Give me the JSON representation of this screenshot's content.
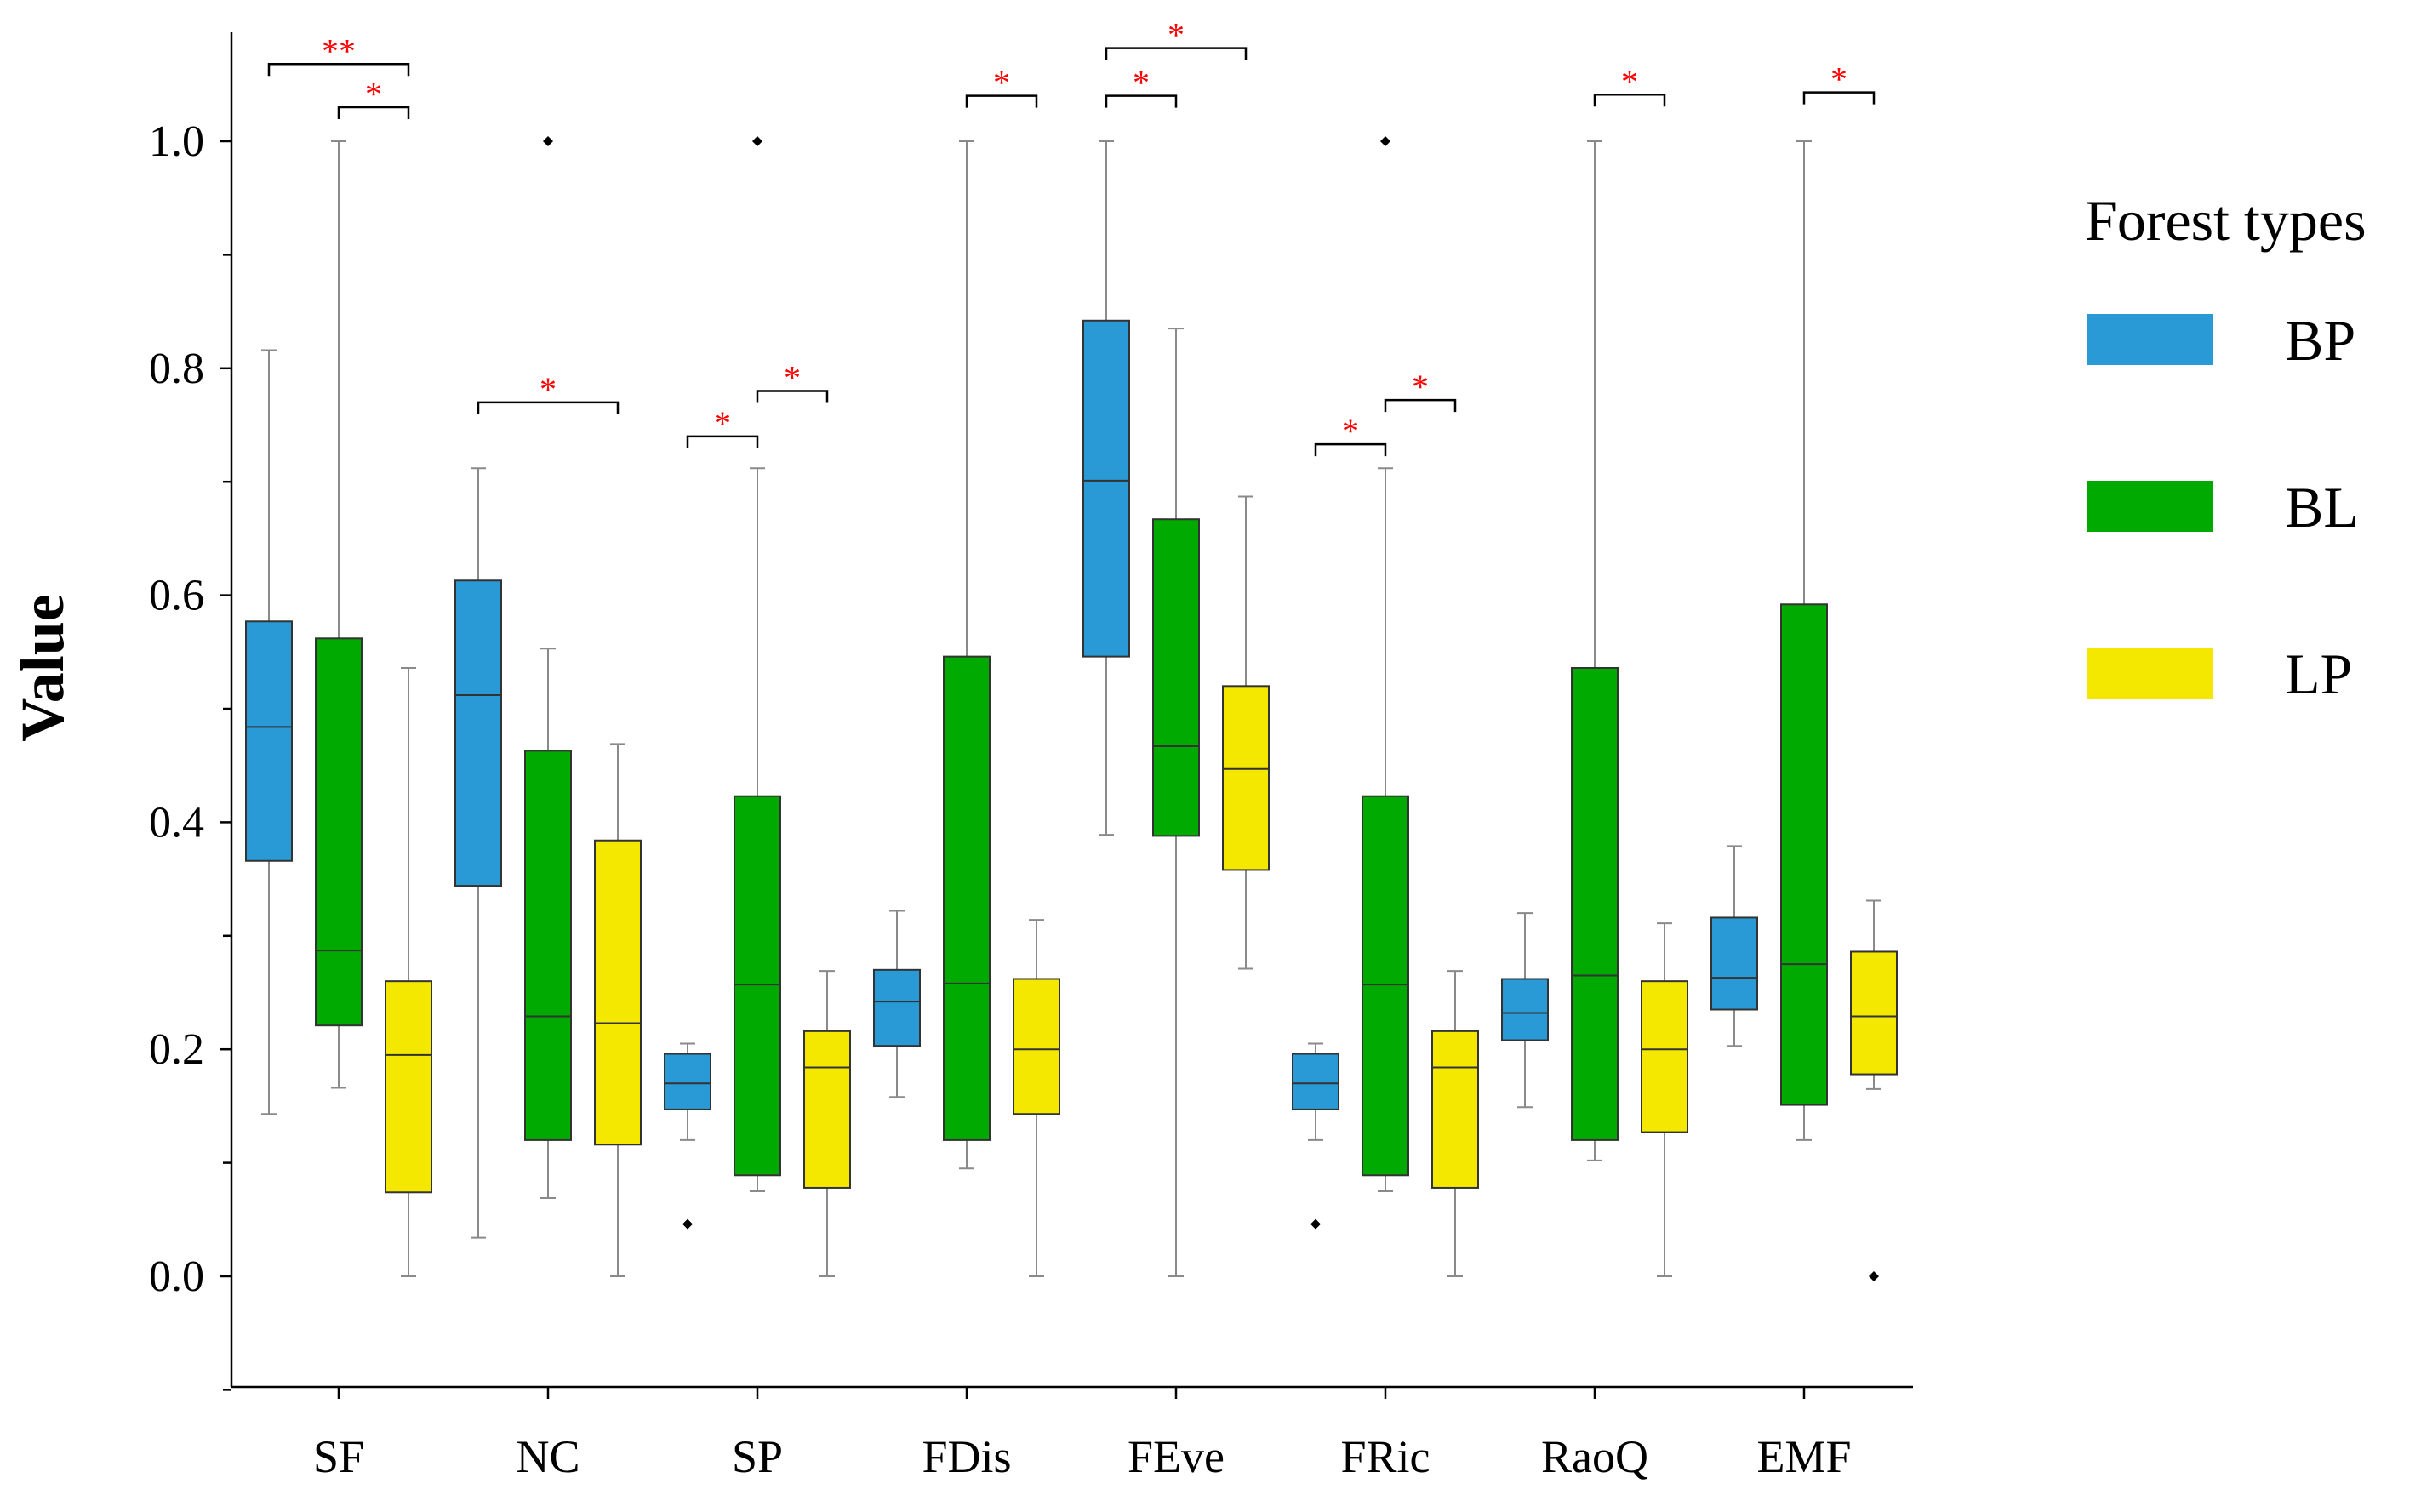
{
  "chart_data": {
    "type": "boxplot",
    "ylabel": "Value",
    "ylim": [
      -0.1,
      1.09
    ],
    "yticks": [
      "0.0",
      "0.2",
      "0.4",
      "0.6",
      "0.8",
      "1.0"
    ],
    "categories": [
      "SF",
      "NC",
      "SP",
      "FDis",
      "FEve",
      "FRic",
      "RaoQ",
      "EMF"
    ],
    "legend": {
      "title": "Forest types",
      "position": "right",
      "items": [
        {
          "name": "BP",
          "color": "#2a9ad6"
        },
        {
          "name": "BL",
          "color": "#00aa00"
        },
        {
          "name": "LP",
          "color": "#f5e800"
        }
      ]
    },
    "series": [
      {
        "name": "BP",
        "color": "#2a9ad6",
        "boxes": [
          {
            "min": 0.143,
            "q1": 0.366,
            "median": 0.484,
            "q3": 0.577,
            "max": 0.816,
            "outliers": []
          },
          {
            "min": 0.034,
            "q1": 0.344,
            "median": 0.512,
            "q3": 0.613,
            "max": 0.712,
            "outliers": []
          },
          {
            "min": 0.12,
            "q1": 0.147,
            "median": 0.17,
            "q3": 0.196,
            "max": 0.205,
            "outliers": [
              0.046
            ]
          },
          {
            "min": 0.158,
            "q1": 0.203,
            "median": 0.242,
            "q3": 0.27,
            "max": 0.322,
            "outliers": []
          },
          {
            "min": 0.389,
            "q1": 0.546,
            "median": 0.701,
            "q3": 0.842,
            "max": 1.0,
            "outliers": []
          },
          {
            "min": 0.12,
            "q1": 0.147,
            "median": 0.17,
            "q3": 0.196,
            "max": 0.205,
            "outliers": [
              0.046
            ]
          },
          {
            "min": 0.149,
            "q1": 0.208,
            "median": 0.232,
            "q3": 0.262,
            "max": 0.32,
            "outliers": []
          },
          {
            "min": 0.203,
            "q1": 0.235,
            "median": 0.263,
            "q3": 0.316,
            "max": 0.379,
            "outliers": []
          }
        ]
      },
      {
        "name": "BL",
        "color": "#00aa00",
        "boxes": [
          {
            "min": 0.166,
            "q1": 0.221,
            "median": 0.287,
            "q3": 0.562,
            "max": 1.0,
            "outliers": []
          },
          {
            "min": 0.069,
            "q1": 0.12,
            "median": 0.229,
            "q3": 0.463,
            "max": 0.553,
            "outliers": [
              1.0
            ]
          },
          {
            "min": 0.075,
            "q1": 0.089,
            "median": 0.257,
            "q3": 0.423,
            "max": 0.712,
            "outliers": [
              1.0
            ]
          },
          {
            "min": 0.095,
            "q1": 0.12,
            "median": 0.258,
            "q3": 0.546,
            "max": 1.0,
            "outliers": []
          },
          {
            "min": 0.0,
            "q1": 0.388,
            "median": 0.467,
            "q3": 0.667,
            "max": 0.835,
            "outliers": []
          },
          {
            "min": 0.075,
            "q1": 0.089,
            "median": 0.257,
            "q3": 0.423,
            "max": 0.712,
            "outliers": [
              1.0
            ]
          },
          {
            "min": 0.102,
            "q1": 0.12,
            "median": 0.265,
            "q3": 0.536,
            "max": 1.0,
            "outliers": []
          },
          {
            "min": 0.12,
            "q1": 0.151,
            "median": 0.275,
            "q3": 0.592,
            "max": 1.0,
            "outliers": []
          }
        ]
      },
      {
        "name": "LP",
        "color": "#f5e800",
        "boxes": [
          {
            "min": 0.0,
            "q1": 0.074,
            "median": 0.195,
            "q3": 0.26,
            "max": 0.536,
            "outliers": []
          },
          {
            "min": 0.0,
            "q1": 0.116,
            "median": 0.223,
            "q3": 0.384,
            "max": 0.469,
            "outliers": []
          },
          {
            "min": 0.0,
            "q1": 0.078,
            "median": 0.184,
            "q3": 0.216,
            "max": 0.269,
            "outliers": []
          },
          {
            "min": 0.0,
            "q1": 0.143,
            "median": 0.2,
            "q3": 0.262,
            "max": 0.314,
            "outliers": []
          },
          {
            "min": 0.271,
            "q1": 0.358,
            "median": 0.447,
            "q3": 0.52,
            "max": 0.687,
            "outliers": []
          },
          {
            "min": 0.0,
            "q1": 0.078,
            "median": 0.184,
            "q3": 0.216,
            "max": 0.269,
            "outliers": []
          },
          {
            "min": 0.0,
            "q1": 0.127,
            "median": 0.2,
            "q3": 0.26,
            "max": 0.311,
            "outliers": []
          },
          {
            "min": 0.165,
            "q1": 0.178,
            "median": 0.229,
            "q3": 0.286,
            "max": 0.331,
            "outliers": [
              0.0
            ]
          }
        ]
      }
    ],
    "significance": [
      {
        "category": "SF",
        "from": "BP",
        "to": "LP",
        "label": "**",
        "y": 1.068
      },
      {
        "category": "SF",
        "from": "BL",
        "to": "LP",
        "label": "*",
        "y": 1.03
      },
      {
        "category": "NC",
        "from": "BP",
        "to": "LP",
        "label": "*",
        "y": 0.77
      },
      {
        "category": "SP",
        "from": "BP",
        "to": "BL",
        "label": "*",
        "y": 0.74
      },
      {
        "category": "SP",
        "from": "BL",
        "to": "LP",
        "label": "*",
        "y": 0.78
      },
      {
        "category": "FDis",
        "from": "BL",
        "to": "LP",
        "label": "*",
        "y": 1.04
      },
      {
        "category": "FEve",
        "from": "BP",
        "to": "BL",
        "label": "*",
        "y": 1.04
      },
      {
        "category": "FEve",
        "from": "BP",
        "to": "LP",
        "label": "*",
        "y": 1.082
      },
      {
        "category": "FRic",
        "from": "BP",
        "to": "BL",
        "label": "*",
        "y": 0.733
      },
      {
        "category": "FRic",
        "from": "BL",
        "to": "LP",
        "label": "*",
        "y": 0.772
      },
      {
        "category": "RaoQ",
        "from": "BL",
        "to": "LP",
        "label": "*",
        "y": 1.041
      },
      {
        "category": "EMF",
        "from": "BL",
        "to": "LP",
        "label": "*",
        "y": 1.043
      }
    ]
  }
}
